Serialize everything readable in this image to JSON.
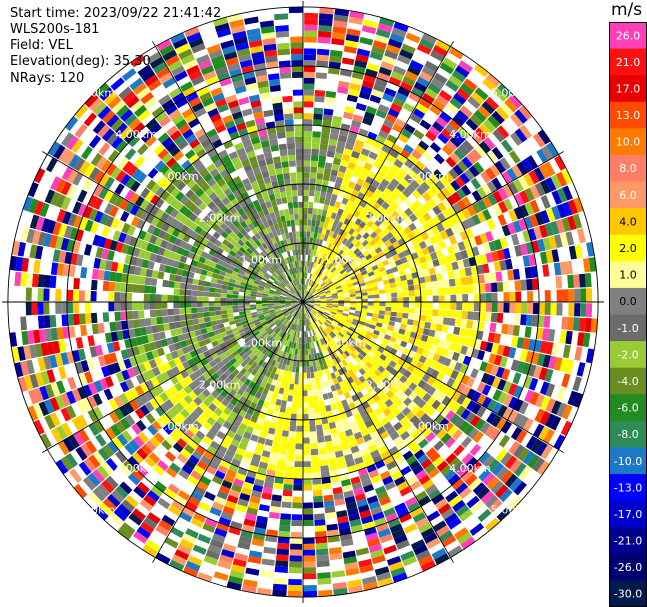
{
  "info": {
    "start_time": "Start time: 2023/09/22 21:41:42",
    "instrument": "WLS200s-181",
    "field": "Field: VEL",
    "elevation": "Elevation(deg): 35.30",
    "nrays": "NRays: 120"
  },
  "chart_data": {
    "type": "heatmap",
    "projection": "polar",
    "field": "VEL",
    "units": "m/s",
    "rays": 120,
    "elevation_deg": 35.3,
    "range_km_max": 5.1,
    "range_ring_labels": [
      "1.00km",
      "2.00km",
      "3.00km",
      "4.00km",
      "5.00km"
    ],
    "range_ring_km": [
      1,
      2,
      3,
      4,
      5
    ],
    "ring_label_directions": [
      "NW",
      "NE",
      "SW",
      "SE"
    ],
    "radial_line_spacing_deg": 30,
    "colorbar": {
      "title": "m/s",
      "labels": [
        "26.0",
        "21.0",
        "17.0",
        "13.0",
        "10.0",
        "8.0",
        "6.0",
        "4.0",
        "2.0",
        "1.0",
        "0.0",
        "-1.0",
        "-2.0",
        "-4.0",
        "-6.0",
        "-8.0",
        "-10.0",
        "-13.0",
        "-17.0",
        "-21.0",
        "-26.0",
        "-30.0"
      ],
      "colors": [
        "#ff40b8",
        "#ff1010",
        "#e80000",
        "#ff4a00",
        "#ff7a00",
        "#ff7f66",
        "#ff9966",
        "#ffc800",
        "#ffff00",
        "#ffff99",
        "#808080",
        "#6b6b6b",
        "#99cc33",
        "#6b8e23",
        "#228b22",
        "#2e8b57",
        "#1e78c8",
        "#0000ff",
        "#0000cd",
        "#000090",
        "#000070",
        "#001a4a"
      ]
    },
    "pattern": {
      "inner_zone_km": 1.5,
      "coherent_zone_km": 3.1,
      "west_sector": "negative (greens/grey)",
      "east_sector": "positive (yellow)",
      "beyond_coherent": "noisy (all colors)"
    }
  }
}
